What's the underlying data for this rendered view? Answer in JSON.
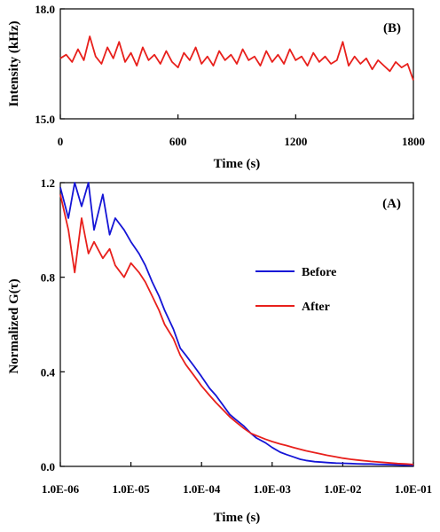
{
  "chart_data": [
    {
      "panel": "(B)",
      "type": "line",
      "xlabel": "Time (s)",
      "ylabel": "Intensity (kHz)",
      "xlim": [
        0,
        1800
      ],
      "ylim": [
        15.0,
        18.0
      ],
      "x_ticks": [
        0,
        600,
        1200,
        1800
      ],
      "x_tick_labels": [
        "0",
        "600",
        "1200",
        "1800"
      ],
      "y_ticks": [
        15.0,
        18.0
      ],
      "y_tick_labels": [
        "15.0",
        "18.0"
      ],
      "series": [
        {
          "color": "#e8201c",
          "x": [
            0,
            30,
            60,
            90,
            120,
            150,
            180,
            210,
            240,
            270,
            300,
            330,
            360,
            390,
            420,
            450,
            480,
            510,
            540,
            570,
            600,
            630,
            660,
            690,
            720,
            750,
            780,
            810,
            840,
            870,
            900,
            930,
            960,
            990,
            1020,
            1050,
            1080,
            1110,
            1140,
            1170,
            1200,
            1230,
            1260,
            1290,
            1320,
            1350,
            1380,
            1410,
            1440,
            1470,
            1500,
            1530,
            1560,
            1590,
            1620,
            1650,
            1680,
            1710,
            1740,
            1770,
            1800
          ],
          "y": [
            16.65,
            16.75,
            16.55,
            16.9,
            16.6,
            17.25,
            16.7,
            16.5,
            16.95,
            16.65,
            17.1,
            16.55,
            16.8,
            16.45,
            16.95,
            16.6,
            16.75,
            16.5,
            16.85,
            16.55,
            16.4,
            16.8,
            16.6,
            16.95,
            16.5,
            16.7,
            16.45,
            16.85,
            16.6,
            16.75,
            16.5,
            16.9,
            16.6,
            16.7,
            16.45,
            16.85,
            16.55,
            16.75,
            16.5,
            16.9,
            16.6,
            16.7,
            16.45,
            16.8,
            16.55,
            16.7,
            16.5,
            16.6,
            17.1,
            16.45,
            16.7,
            16.5,
            16.65,
            16.35,
            16.6,
            16.45,
            16.3,
            16.55,
            16.4,
            16.5,
            16.05
          ]
        }
      ]
    },
    {
      "panel": "(A)",
      "type": "line",
      "xlabel": "Time (s)",
      "ylabel": "Normalized G(τ)",
      "x_scale": "log",
      "xlim": [
        1e-06,
        0.1
      ],
      "ylim": [
        0.0,
        1.2
      ],
      "x_ticks": [
        1e-06,
        1e-05,
        0.0001,
        0.001,
        0.01,
        0.1
      ],
      "x_tick_labels": [
        "1.0E-06",
        "1.0E-05",
        "1.0E-04",
        "1.0E-03",
        "1.0E-02",
        "1.0E-01"
      ],
      "y_ticks": [
        0.0,
        0.4,
        0.8,
        1.2
      ],
      "y_tick_labels": [
        "0.0",
        "0.4",
        "0.8",
        "1.2"
      ],
      "legend_position": "right",
      "series": [
        {
          "name": "Before",
          "color": "#1515d6",
          "x": [
            1e-06,
            1.3e-06,
            1.6e-06,
            2e-06,
            2.5e-06,
            3e-06,
            4e-06,
            5e-06,
            6e-06,
            8e-06,
            1e-05,
            1.3e-05,
            1.6e-05,
            2e-05,
            2.5e-05,
            3e-05,
            4e-05,
            5e-05,
            6e-05,
            8e-05,
            0.0001,
            0.00013,
            0.00016,
            0.0002,
            0.00025,
            0.0003,
            0.0004,
            0.0005,
            0.0006,
            0.0008,
            0.001,
            0.0013,
            0.0016,
            0.002,
            0.0025,
            0.003,
            0.004,
            0.005,
            0.006,
            0.008,
            0.01,
            0.013,
            0.016,
            0.02,
            0.025,
            0.03,
            0.04,
            0.05,
            0.06,
            0.08,
            0.1
          ],
          "y": [
            1.18,
            1.05,
            1.2,
            1.1,
            1.25,
            1.0,
            1.15,
            0.98,
            1.05,
            1.0,
            0.95,
            0.9,
            0.85,
            0.78,
            0.72,
            0.66,
            0.58,
            0.5,
            0.47,
            0.42,
            0.38,
            0.33,
            0.3,
            0.26,
            0.22,
            0.2,
            0.17,
            0.14,
            0.12,
            0.1,
            0.08,
            0.06,
            0.05,
            0.04,
            0.03,
            0.025,
            0.02,
            0.018,
            0.016,
            0.014,
            0.013,
            0.012,
            0.011,
            0.01,
            0.01,
            0.009,
            0.008,
            0.007,
            0.006,
            0.005,
            0.004
          ]
        },
        {
          "name": "After",
          "color": "#e8201c",
          "x": [
            1e-06,
            1.3e-06,
            1.6e-06,
            2e-06,
            2.5e-06,
            3e-06,
            4e-06,
            5e-06,
            6e-06,
            8e-06,
            1e-05,
            1.3e-05,
            1.6e-05,
            2e-05,
            2.5e-05,
            3e-05,
            4e-05,
            5e-05,
            6e-05,
            8e-05,
            0.0001,
            0.00013,
            0.00016,
            0.0002,
            0.00025,
            0.0003,
            0.0004,
            0.0005,
            0.0006,
            0.0008,
            0.001,
            0.0013,
            0.0016,
            0.002,
            0.0025,
            0.003,
            0.004,
            0.005,
            0.006,
            0.008,
            0.01,
            0.013,
            0.016,
            0.02,
            0.025,
            0.03,
            0.04,
            0.05,
            0.06,
            0.08,
            0.1
          ],
          "y": [
            1.15,
            1.0,
            0.82,
            1.05,
            0.9,
            0.95,
            0.88,
            0.92,
            0.85,
            0.8,
            0.86,
            0.82,
            0.78,
            0.72,
            0.66,
            0.6,
            0.54,
            0.47,
            0.43,
            0.38,
            0.34,
            0.3,
            0.27,
            0.24,
            0.21,
            0.19,
            0.16,
            0.14,
            0.13,
            0.115,
            0.105,
            0.095,
            0.088,
            0.08,
            0.072,
            0.066,
            0.058,
            0.052,
            0.047,
            0.04,
            0.035,
            0.03,
            0.027,
            0.024,
            0.021,
            0.019,
            0.016,
            0.014,
            0.012,
            0.01,
            0.008
          ]
        }
      ]
    }
  ]
}
